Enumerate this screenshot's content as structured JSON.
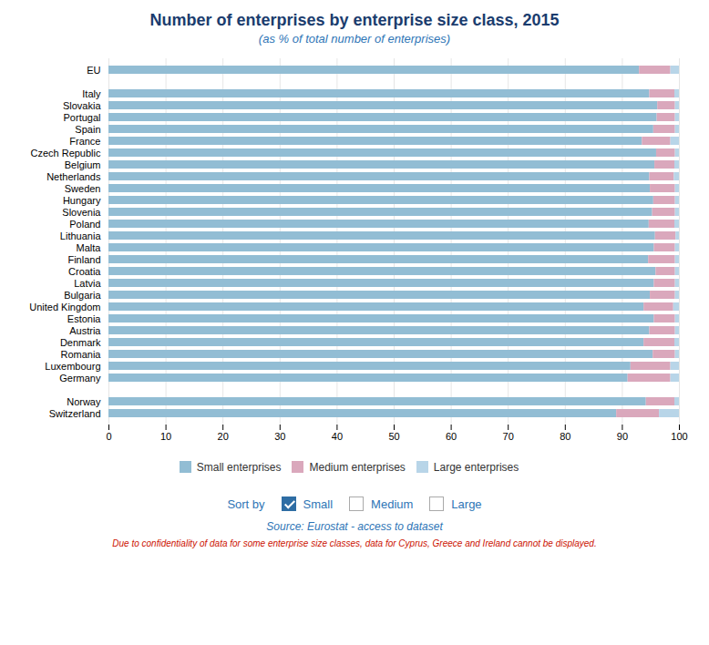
{
  "chart_data": {
    "type": "bar",
    "orientation": "horizontal",
    "stacked": true,
    "title": "Number of enterprises by enterprise size class, 2015",
    "subtitle": "(as % of total number of enterprises)",
    "categories": [
      "EU",
      null,
      "Italy",
      "Slovakia",
      "Portugal",
      "Spain",
      "France",
      "Czech Republic",
      "Belgium",
      "Netherlands",
      "Sweden",
      "Hungary",
      "Slovenia",
      "Poland",
      "Lithuania",
      "Malta",
      "Finland",
      "Croatia",
      "Latvia",
      "Bulgaria",
      "United Kingdom",
      "Estonia",
      "Austria",
      "Denmark",
      "Romania",
      "Luxembourg",
      "Germany",
      null,
      "Norway",
      "Switzerland"
    ],
    "series": [
      {
        "name": "Small enterprises",
        "color": "#92bdd4",
        "values": [
          93.0,
          0,
          94.8,
          96.2,
          96.1,
          95.5,
          93.5,
          96.0,
          95.7,
          94.8,
          94.9,
          95.5,
          95.3,
          94.7,
          95.8,
          95.6,
          94.6,
          95.9,
          95.6,
          94.9,
          93.8,
          95.6,
          94.8,
          93.8,
          95.4,
          91.5,
          91.0,
          0,
          94.2,
          89.0
        ]
      },
      {
        "name": "Medium enterprises",
        "color": "#daa8bc",
        "values": [
          5.5,
          0,
          4.4,
          3.1,
          3.2,
          3.8,
          5.0,
          3.3,
          3.5,
          4.3,
          4.4,
          3.8,
          4.0,
          4.5,
          3.6,
          3.7,
          4.7,
          3.4,
          3.7,
          4.4,
          5.2,
          3.7,
          4.5,
          5.4,
          3.9,
          7.0,
          7.5,
          0,
          5.0,
          7.5
        ]
      },
      {
        "name": "Large enterprises",
        "color": "#b8d5e8",
        "values": [
          1.5,
          0,
          0.8,
          0.7,
          0.7,
          0.7,
          1.5,
          0.7,
          0.8,
          0.9,
          0.7,
          0.7,
          0.7,
          0.8,
          0.6,
          0.7,
          0.7,
          0.7,
          0.7,
          0.7,
          1.0,
          0.7,
          0.7,
          0.8,
          0.7,
          1.5,
          1.5,
          0,
          0.8,
          3.5
        ]
      }
    ],
    "xlim": [
      0,
      100
    ],
    "xticks": [
      0,
      10,
      20,
      30,
      40,
      50,
      60,
      70,
      80,
      90,
      100
    ],
    "grid": true,
    "legend": "bottom",
    "annotations": [
      {
        "text": "Sort by"
      },
      {
        "text": "Small"
      },
      {
        "text": "Medium"
      },
      {
        "text": "Large"
      },
      {
        "text": "Source: Eurostat - access to dataset"
      },
      {
        "text": "Due to confidentiality of data for some enterprise size classes, data for Cyprus, Greece and Ireland cannot be displayed.",
        "color": "#cc1100"
      }
    ]
  }
}
